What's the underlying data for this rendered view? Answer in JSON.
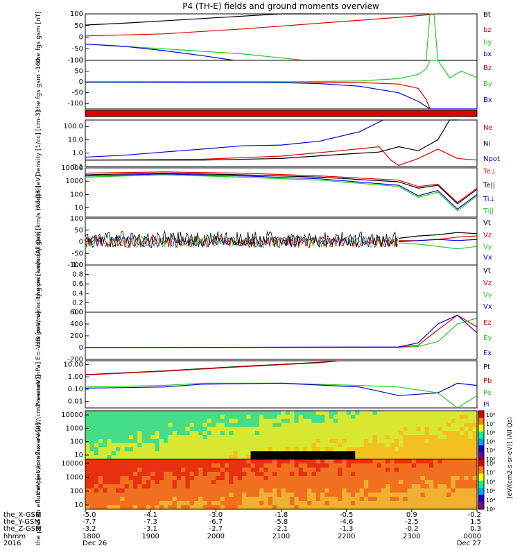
{
  "title": "P4 (TH-E) fields and ground moments overview",
  "chart_data": [
    {
      "type": "line",
      "ylabel": "the fgs gsm [nT]",
      "ylim": [
        -100,
        100
      ],
      "yticks": [
        "100",
        "50",
        "0",
        "-50",
        "-100"
      ],
      "legend": [
        {
          "name": "Bt",
          "color": "#000000"
        },
        {
          "name": "bz",
          "color": "#dd0000"
        },
        {
          "name": "by",
          "color": "#22cc22"
        },
        {
          "name": "bx",
          "color": "#0000dd"
        }
      ],
      "series": [
        {
          "name": "Bt",
          "color": "#000000",
          "x": [
            0,
            0.1,
            0.3,
            0.5,
            0.6
          ],
          "y": [
            52,
            60,
            80,
            100,
            115
          ]
        },
        {
          "name": "bz",
          "color": "#dd0000",
          "x": [
            0,
            0.2,
            0.4,
            0.6,
            0.8,
            0.9
          ],
          "y": [
            5,
            14,
            35,
            60,
            85,
            100
          ]
        },
        {
          "name": "by",
          "color": "#22cc22",
          "x": [
            0,
            0.1,
            0.2,
            0.4,
            0.56,
            0.87,
            0.88,
            0.89,
            0.9,
            0.91,
            1.0
          ],
          "y": [
            -30,
            -40,
            -50,
            -72,
            -100,
            -100,
            100,
            100,
            -100,
            -100,
            -100
          ]
        },
        {
          "name": "bx",
          "color": "#0000dd",
          "x": [
            0,
            0.1,
            0.2,
            0.3,
            0.38
          ],
          "y": [
            -30,
            -40,
            -58,
            -80,
            -100
          ]
        }
      ]
    },
    {
      "type": "line",
      "ylabel": "the fgs gsm -160",
      "ylim": [
        -125,
        100
      ],
      "yticks": [
        "100",
        "50",
        "0",
        "-50",
        "-100"
      ],
      "legend": [
        {
          "name": "Bz",
          "color": "#dd0000"
        },
        {
          "name": "By",
          "color": "#22cc22"
        },
        {
          "name": "Bx",
          "color": "#0000dd"
        }
      ],
      "series": [
        {
          "name": "Bz",
          "color": "#dd0000",
          "x": [
            0,
            0.5,
            0.7,
            0.8,
            0.85,
            0.87,
            0.88
          ],
          "y": [
            0,
            1,
            -3,
            -10,
            -30,
            -80,
            -125
          ]
        },
        {
          "name": "By",
          "color": "#22cc22",
          "x": [
            0,
            0.5,
            0.7,
            0.8,
            0.85,
            0.87,
            0.88,
            0.9,
            0.93,
            0.96,
            1.0
          ],
          "y": [
            -2,
            0,
            5,
            15,
            35,
            60,
            100,
            100,
            20,
            50,
            20
          ]
        },
        {
          "name": "Bx",
          "color": "#0000dd",
          "x": [
            0,
            0.5,
            0.6,
            0.7,
            0.8,
            0.85,
            0.88,
            1.0
          ],
          "y": [
            0,
            -3,
            -8,
            -20,
            -50,
            -90,
            -125,
            -125
          ]
        }
      ]
    },
    {
      "type": "line",
      "ylabel": "Density [1/cc] [cm-3]",
      "yscale": "log",
      "ylim": [
        0.1,
        300
      ],
      "yticks": [
        "100.0",
        "10.0",
        "1.0",
        "0.1"
      ],
      "legend": [
        {
          "name": "Ne",
          "color": "#dd0000"
        },
        {
          "name": "Ni",
          "color": "#000000"
        },
        {
          "name": "Npot",
          "color": "#0000dd"
        }
      ],
      "series": [
        {
          "name": "Ne",
          "color": "#dd0000",
          "x": [
            0,
            0.3,
            0.5,
            0.65,
            0.75,
            0.78,
            0.8,
            0.85,
            0.9,
            0.95,
            1.0
          ],
          "y": [
            0.3,
            0.35,
            0.6,
            1.5,
            3,
            0.3,
            0.12,
            0.4,
            2,
            0.4,
            0.3
          ]
        },
        {
          "name": "Ni",
          "color": "#000000",
          "x": [
            0,
            0.3,
            0.5,
            0.65,
            0.75,
            0.8,
            0.85,
            0.9,
            0.93,
            0.95
          ],
          "y": [
            0.3,
            0.3,
            0.4,
            0.8,
            1.2,
            3,
            1.5,
            10,
            300,
            300
          ]
        },
        {
          "name": "Npot",
          "color": "#0000dd",
          "x": [
            0,
            0.1,
            0.2,
            0.3,
            0.4,
            0.5,
            0.6,
            0.7,
            0.76
          ],
          "y": [
            0.5,
            0.7,
            1.2,
            2,
            3.5,
            4,
            8,
            40,
            300
          ]
        }
      ]
    },
    {
      "type": "line",
      "ylabel": "moqt3 [eV]",
      "yscale": "log",
      "ylim": [
        2,
        10000
      ],
      "yticks": [
        "10000",
        "1000",
        "100",
        "10"
      ],
      "legend": [
        {
          "name": "Te⊥",
          "color": "#dd0000"
        },
        {
          "name": "Te||",
          "color": "#000000"
        },
        {
          "name": "Ti⊥",
          "color": "#0000dd"
        },
        {
          "name": "Ti||",
          "color": "#22cc22"
        }
      ],
      "series": [
        {
          "name": "Te⊥",
          "color": "#dd0000",
          "x": [
            0,
            0.2,
            0.4,
            0.6,
            0.8,
            0.85,
            0.9,
            0.95,
            1.0
          ],
          "y": [
            4000,
            5000,
            4000,
            2500,
            1200,
            400,
            600,
            25,
            300
          ]
        },
        {
          "name": "Te||",
          "color": "#000000",
          "x": [
            0,
            0.2,
            0.4,
            0.6,
            0.8,
            0.85,
            0.9,
            0.95,
            1.0
          ],
          "y": [
            3000,
            4000,
            3000,
            2000,
            900,
            300,
            500,
            20,
            250
          ]
        },
        {
          "name": "Ti⊥",
          "color": "#0000dd",
          "x": [
            0,
            0.2,
            0.4,
            0.6,
            0.8,
            0.85,
            0.9,
            0.95,
            1.0
          ],
          "y": [
            2500,
            3500,
            2500,
            1500,
            500,
            80,
            200,
            8,
            100
          ]
        },
        {
          "name": "Ti||",
          "color": "#22cc22",
          "x": [
            0,
            0.2,
            0.4,
            0.6,
            0.8,
            0.85,
            0.9,
            0.95,
            1.0
          ],
          "y": [
            2000,
            3000,
            2000,
            1200,
            400,
            60,
            150,
            6,
            80
          ]
        }
      ]
    },
    {
      "type": "line",
      "ylabel": "the peir velocity gsm [km/s (All Qs)]",
      "ylim": [
        -100,
        100
      ],
      "yticks": [
        "100",
        "50",
        "0",
        "-50",
        "-100"
      ],
      "legend": [
        {
          "name": "Vt",
          "color": "#000000"
        },
        {
          "name": "Vz",
          "color": "#dd0000"
        },
        {
          "name": "Vy",
          "color": "#22cc22"
        },
        {
          "name": "Vx",
          "color": "#0000dd"
        }
      ],
      "noise_until": 0.8,
      "series": [
        {
          "name": "Vt",
          "color": "#000000",
          "x": [
            0.8,
            0.85,
            0.9,
            0.95,
            1.0
          ],
          "y": [
            15,
            25,
            30,
            40,
            35
          ]
        },
        {
          "name": "Vz",
          "color": "#dd0000",
          "x": [
            0.8,
            0.85,
            0.9,
            0.95,
            1.0
          ],
          "y": [
            5,
            5,
            10,
            20,
            25
          ]
        },
        {
          "name": "Vy",
          "color": "#22cc22",
          "x": [
            0.8,
            0.85,
            0.9,
            0.95,
            1.0
          ],
          "y": [
            -5,
            -10,
            -20,
            -30,
            -20
          ]
        },
        {
          "name": "Vx",
          "color": "#0000dd",
          "x": [
            0.8,
            0.85,
            0.9,
            0.95,
            1.0
          ],
          "y": [
            0,
            5,
            10,
            5,
            10
          ]
        }
      ]
    },
    {
      "type": "line",
      "ylabel": "the peer velocity gsm [km/s (All Qs)]",
      "ylim": [
        0,
        1
      ],
      "yticks": [
        "1.0",
        "0.8",
        "0.6",
        "0.4",
        "0.2",
        "0.0"
      ],
      "legend": [
        {
          "name": "Vt",
          "color": "#000000"
        },
        {
          "name": "Vz",
          "color": "#dd0000"
        },
        {
          "name": "Vy",
          "color": "#22cc22"
        },
        {
          "name": "Vx",
          "color": "#0000dd"
        }
      ],
      "series": []
    },
    {
      "type": "line",
      "ylabel": "E=-VxB [mV/m]",
      "ylim": [
        -200,
        600
      ],
      "yticks": [
        "600",
        "400",
        "200",
        "0",
        "-200"
      ],
      "legend": [
        {
          "name": "Ez",
          "color": "#dd0000"
        },
        {
          "name": "Ey",
          "color": "#22cc22"
        },
        {
          "name": "Ex",
          "color": "#0000dd"
        }
      ],
      "series": [
        {
          "name": "Ez",
          "color": "#dd0000",
          "x": [
            0,
            0.8,
            0.85,
            0.9,
            0.95,
            1.0
          ],
          "y": [
            0,
            5,
            40,
            300,
            550,
            350
          ]
        },
        {
          "name": "Ey",
          "color": "#22cc22",
          "x": [
            0,
            0.8,
            0.85,
            0.9,
            0.95,
            1.0
          ],
          "y": [
            0,
            0,
            20,
            100,
            400,
            500
          ]
        },
        {
          "name": "Ex",
          "color": "#0000dd",
          "x": [
            0,
            0.8,
            0.85,
            0.9,
            0.95,
            1.0
          ],
          "y": [
            0,
            10,
            80,
            400,
            550,
            250
          ]
        }
      ]
    },
    {
      "type": "line",
      "ylabel": "Pressure [nPa]",
      "yscale": "log",
      "ylim": [
        0.003,
        20
      ],
      "yticks": [
        "10.00",
        "1.00",
        "0.10",
        "0.01"
      ],
      "legend": [
        {
          "name": "Pt",
          "color": "#000000"
        },
        {
          "name": "Pb",
          "color": "#dd0000"
        },
        {
          "name": "Pe",
          "color": "#22cc22"
        },
        {
          "name": "Pi",
          "color": "#0000dd"
        }
      ],
      "series": [
        {
          "name": "Pt",
          "color": "#000000",
          "x": [
            0,
            0.2,
            0.4,
            0.6,
            0.65
          ],
          "y": [
            1.5,
            3,
            7,
            15,
            20
          ]
        },
        {
          "name": "Pb",
          "color": "#dd0000",
          "x": [
            0,
            0.2,
            0.4,
            0.6,
            0.65
          ],
          "y": [
            1.4,
            2.8,
            6.5,
            14,
            20
          ]
        },
        {
          "name": "Pe",
          "color": "#22cc22",
          "x": [
            0,
            0.2,
            0.3,
            0.5,
            0.7,
            0.8,
            0.9,
            0.95,
            1.0
          ],
          "y": [
            0.15,
            0.2,
            0.3,
            0.3,
            0.2,
            0.15,
            0.05,
            0.003,
            0.03
          ]
        },
        {
          "name": "Pi",
          "color": "#0000dd",
          "x": [
            0,
            0.2,
            0.3,
            0.5,
            0.7,
            0.8,
            0.9,
            0.95,
            1.0
          ],
          "y": [
            0.12,
            0.15,
            0.25,
            0.3,
            0.15,
            0.03,
            0.05,
            0.3,
            0.2
          ]
        }
      ]
    },
    {
      "type": "heatmap",
      "ylabel": "the peir en eflux eV [eV/(cm2-s-sr-eV)]",
      "yscale": "log",
      "yticks": [
        "10000",
        "1000",
        "100",
        "10"
      ],
      "colorbar_ticks": [
        "10⁸",
        "10⁷",
        "10⁶",
        "10⁵",
        "10⁴",
        "10³"
      ]
    },
    {
      "type": "heatmap",
      "ylabel": "the peer en eflux eV [eV/(cm2-s-sr-eV)]",
      "yscale": "log",
      "yticks": [
        "10000",
        "1000",
        "100",
        "10"
      ],
      "colorbar_ticks": [
        "10⁸",
        "10⁷",
        "10⁶",
        "10⁵",
        "10⁴",
        "10³"
      ]
    }
  ],
  "colorbar_label": "[eV/(cm2-s-sr-eV)] (All Qs)",
  "xaxis": {
    "row_labels": [
      "the_X-GSM",
      "the_Y-GSM",
      "the_Z-GSM",
      "hhmm",
      "2016"
    ],
    "columns": [
      {
        "values": [
          "-5.0",
          "-7.7",
          "-3.2",
          "1800",
          "Dec 26"
        ]
      },
      {
        "values": [
          "-4.1",
          "-7.3",
          "-3.1",
          "1900",
          ""
        ]
      },
      {
        "values": [
          "-3.0",
          "-6.7",
          "-2.7",
          "2000",
          ""
        ]
      },
      {
        "values": [
          "-1.8",
          "-5.8",
          "-2.1",
          "2100",
          ""
        ]
      },
      {
        "values": [
          "-0.5",
          "-4.6",
          "-1.3",
          "2200",
          ""
        ]
      },
      {
        "values": [
          "0.9",
          "-2.5",
          "-0.2",
          "2300",
          ""
        ]
      },
      {
        "values": [
          "-0.2",
          "1.5",
          "0.3",
          "0000",
          "Dec 27"
        ]
      }
    ]
  },
  "colors": {
    "red": "#dd0000",
    "green": "#22cc22",
    "blue": "#0000dd",
    "black": "#000000"
  }
}
